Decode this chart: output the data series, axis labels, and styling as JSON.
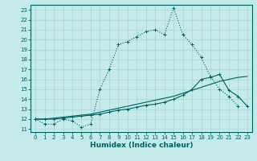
{
  "xlabel": "Humidex (Indice chaleur)",
  "ylabel": "",
  "xlim": [
    -0.5,
    23.5
  ],
  "ylim": [
    10.7,
    23.5
  ],
  "background_color": "#c5eaea",
  "grid_color": "#aad4d4",
  "line_color": "#005f5f",
  "x": [
    0,
    1,
    2,
    3,
    4,
    5,
    6,
    7,
    8,
    9,
    10,
    11,
    12,
    13,
    14,
    15,
    16,
    17,
    18,
    19,
    20,
    21,
    22,
    23
  ],
  "line_main": [
    12.0,
    11.5,
    11.5,
    12.0,
    11.8,
    11.2,
    11.5,
    15.0,
    17.0,
    19.5,
    19.8,
    20.3,
    20.8,
    21.0,
    20.5,
    23.2,
    20.5,
    19.5,
    18.2,
    16.3,
    15.0,
    14.3,
    13.3,
    null
  ],
  "line_top": [
    12.0,
    11.5,
    11.5,
    12.0,
    11.8,
    11.2,
    11.5,
    15.0,
    17.0,
    19.5,
    19.8,
    20.3,
    20.8,
    21.0,
    20.5,
    23.2,
    20.5,
    19.5,
    18.2,
    16.3,
    15.0,
    14.3,
    13.3,
    null
  ],
  "line1_x": [
    0,
    1,
    2,
    3,
    4,
    5,
    6,
    7,
    8,
    9,
    10,
    11,
    12,
    13,
    14,
    15,
    16,
    17,
    18,
    19,
    20,
    21,
    22
  ],
  "line1_y": [
    12.0,
    11.5,
    11.5,
    12.0,
    11.8,
    11.2,
    11.5,
    15.0,
    17.0,
    19.5,
    19.8,
    20.3,
    20.8,
    21.0,
    20.5,
    23.2,
    20.5,
    19.5,
    18.2,
    16.3,
    15.0,
    14.3,
    13.3
  ],
  "line2_x": [
    0,
    1,
    2,
    3,
    4,
    5,
    6,
    7,
    8,
    9,
    10,
    11,
    12,
    13,
    14,
    15,
    16,
    17,
    18,
    19,
    20,
    21,
    22,
    23
  ],
  "line2_y": [
    12.0,
    12.0,
    12.1,
    12.2,
    12.3,
    12.4,
    12.5,
    12.7,
    12.9,
    13.1,
    13.3,
    13.5,
    13.7,
    13.9,
    14.1,
    14.3,
    14.6,
    14.9,
    15.2,
    15.5,
    15.8,
    16.0,
    16.2,
    16.3
  ],
  "line3_x": [
    0,
    1,
    2,
    3,
    4,
    5,
    6,
    7,
    8,
    9,
    10,
    11,
    12,
    13,
    14,
    15,
    16,
    17,
    18,
    19,
    20,
    21,
    22,
    23
  ],
  "line3_y": [
    12.0,
    12.0,
    12.0,
    12.1,
    12.2,
    12.3,
    12.4,
    12.5,
    12.7,
    12.9,
    13.0,
    13.2,
    13.4,
    13.5,
    13.7,
    14.0,
    14.4,
    15.0,
    16.0,
    16.2,
    16.5,
    14.9,
    14.3,
    13.3
  ],
  "yticks": [
    11,
    12,
    13,
    14,
    15,
    16,
    17,
    18,
    19,
    20,
    21,
    22,
    23
  ],
  "xticks": [
    0,
    1,
    2,
    3,
    4,
    5,
    6,
    7,
    8,
    9,
    10,
    11,
    12,
    13,
    14,
    15,
    16,
    17,
    18,
    19,
    20,
    21,
    22,
    23
  ],
  "tick_fontsize": 5,
  "xlabel_fontsize": 6.5
}
